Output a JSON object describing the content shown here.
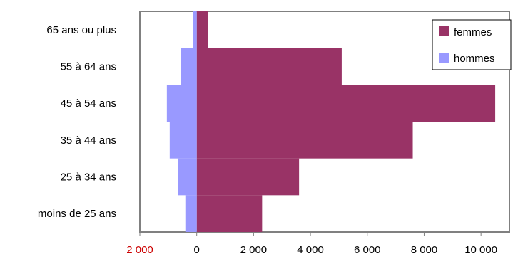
{
  "chart_data": {
    "type": "bar",
    "orientation": "horizontal",
    "stacked": "population-pyramid",
    "categories": [
      "moins de 25 ans",
      "25 à 34 ans",
      "35 à 44 ans",
      "45 à 54 ans",
      "55 à 64 ans",
      "65 ans ou plus"
    ],
    "series": [
      {
        "name": "femmes",
        "values": [
          2300,
          3600,
          7600,
          10500,
          5100,
          400
        ],
        "color": "#993366"
      },
      {
        "name": "hommes",
        "values": [
          -400,
          -650,
          -950,
          -1050,
          -550,
          -120
        ],
        "color": "#9999ff"
      }
    ],
    "x_ticks": [
      {
        "label": "2 000",
        "value": -2000,
        "color": "#cc0000"
      },
      {
        "label": "0",
        "value": 0,
        "color": "#000000"
      },
      {
        "label": "2 000",
        "value": 2000,
        "color": "#000000"
      },
      {
        "label": "4 000",
        "value": 4000,
        "color": "#000000"
      },
      {
        "label": "6 000",
        "value": 6000,
        "color": "#000000"
      },
      {
        "label": "8 000",
        "value": 8000,
        "color": "#000000"
      },
      {
        "label": "10 000",
        "value": 10000,
        "color": "#000000"
      }
    ],
    "xlim": [
      -2000,
      11000
    ],
    "grid": false,
    "legend_position": "top-right",
    "title": "",
    "xlabel": "",
    "ylabel": ""
  }
}
